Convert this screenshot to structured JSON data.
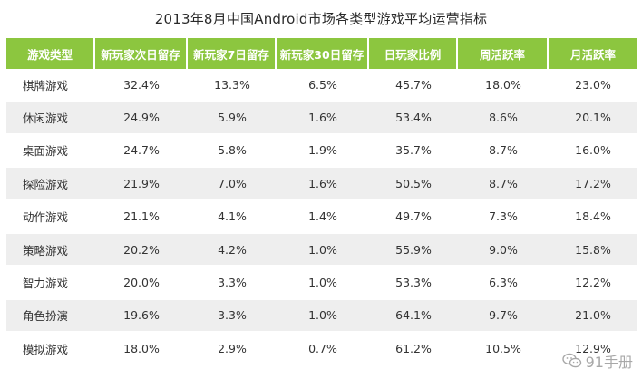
{
  "title": "2013年8月中国Android市场各类型游戏平均运营指标",
  "chart_data": {
    "type": "table",
    "title": "2013年8月中国Android市场各类型游戏平均运营指标",
    "columns": [
      "游戏类型",
      "新玩家次日留存",
      "新玩家7日留存",
      "新玩家30日留存",
      "日玩家比例",
      "周活跃率",
      "月活跃率"
    ],
    "rows": [
      [
        "棋牌游戏",
        "32.4%",
        "13.3%",
        "6.5%",
        "45.7%",
        "18.0%",
        "23.0%"
      ],
      [
        "休闲游戏",
        "24.9%",
        "5.9%",
        "1.6%",
        "53.4%",
        "8.6%",
        "20.1%"
      ],
      [
        "桌面游戏",
        "24.7%",
        "5.8%",
        "1.9%",
        "35.7%",
        "8.7%",
        "16.0%"
      ],
      [
        "探险游戏",
        "21.9%",
        "7.0%",
        "1.6%",
        "50.5%",
        "8.7%",
        "17.2%"
      ],
      [
        "动作游戏",
        "21.1%",
        "4.1%",
        "1.4%",
        "49.7%",
        "7.3%",
        "18.4%"
      ],
      [
        "策略游戏",
        "20.2%",
        "4.2%",
        "1.0%",
        "55.9%",
        "9.0%",
        "15.8%"
      ],
      [
        "智力游戏",
        "20.0%",
        "3.3%",
        "1.0%",
        "53.3%",
        "6.3%",
        "12.2%"
      ],
      [
        "角色扮演",
        "19.6%",
        "3.3%",
        "1.0%",
        "64.1%",
        "9.7%",
        "21.0%"
      ],
      [
        "模拟游戏",
        "18.0%",
        "2.9%",
        "0.7%",
        "61.2%",
        "10.5%",
        "12.9%"
      ]
    ],
    "header_color": "#8cc63f",
    "stripe_color": "#eeeeee"
  },
  "watermark": {
    "icon": "wechat-icon",
    "text": "91手册"
  }
}
